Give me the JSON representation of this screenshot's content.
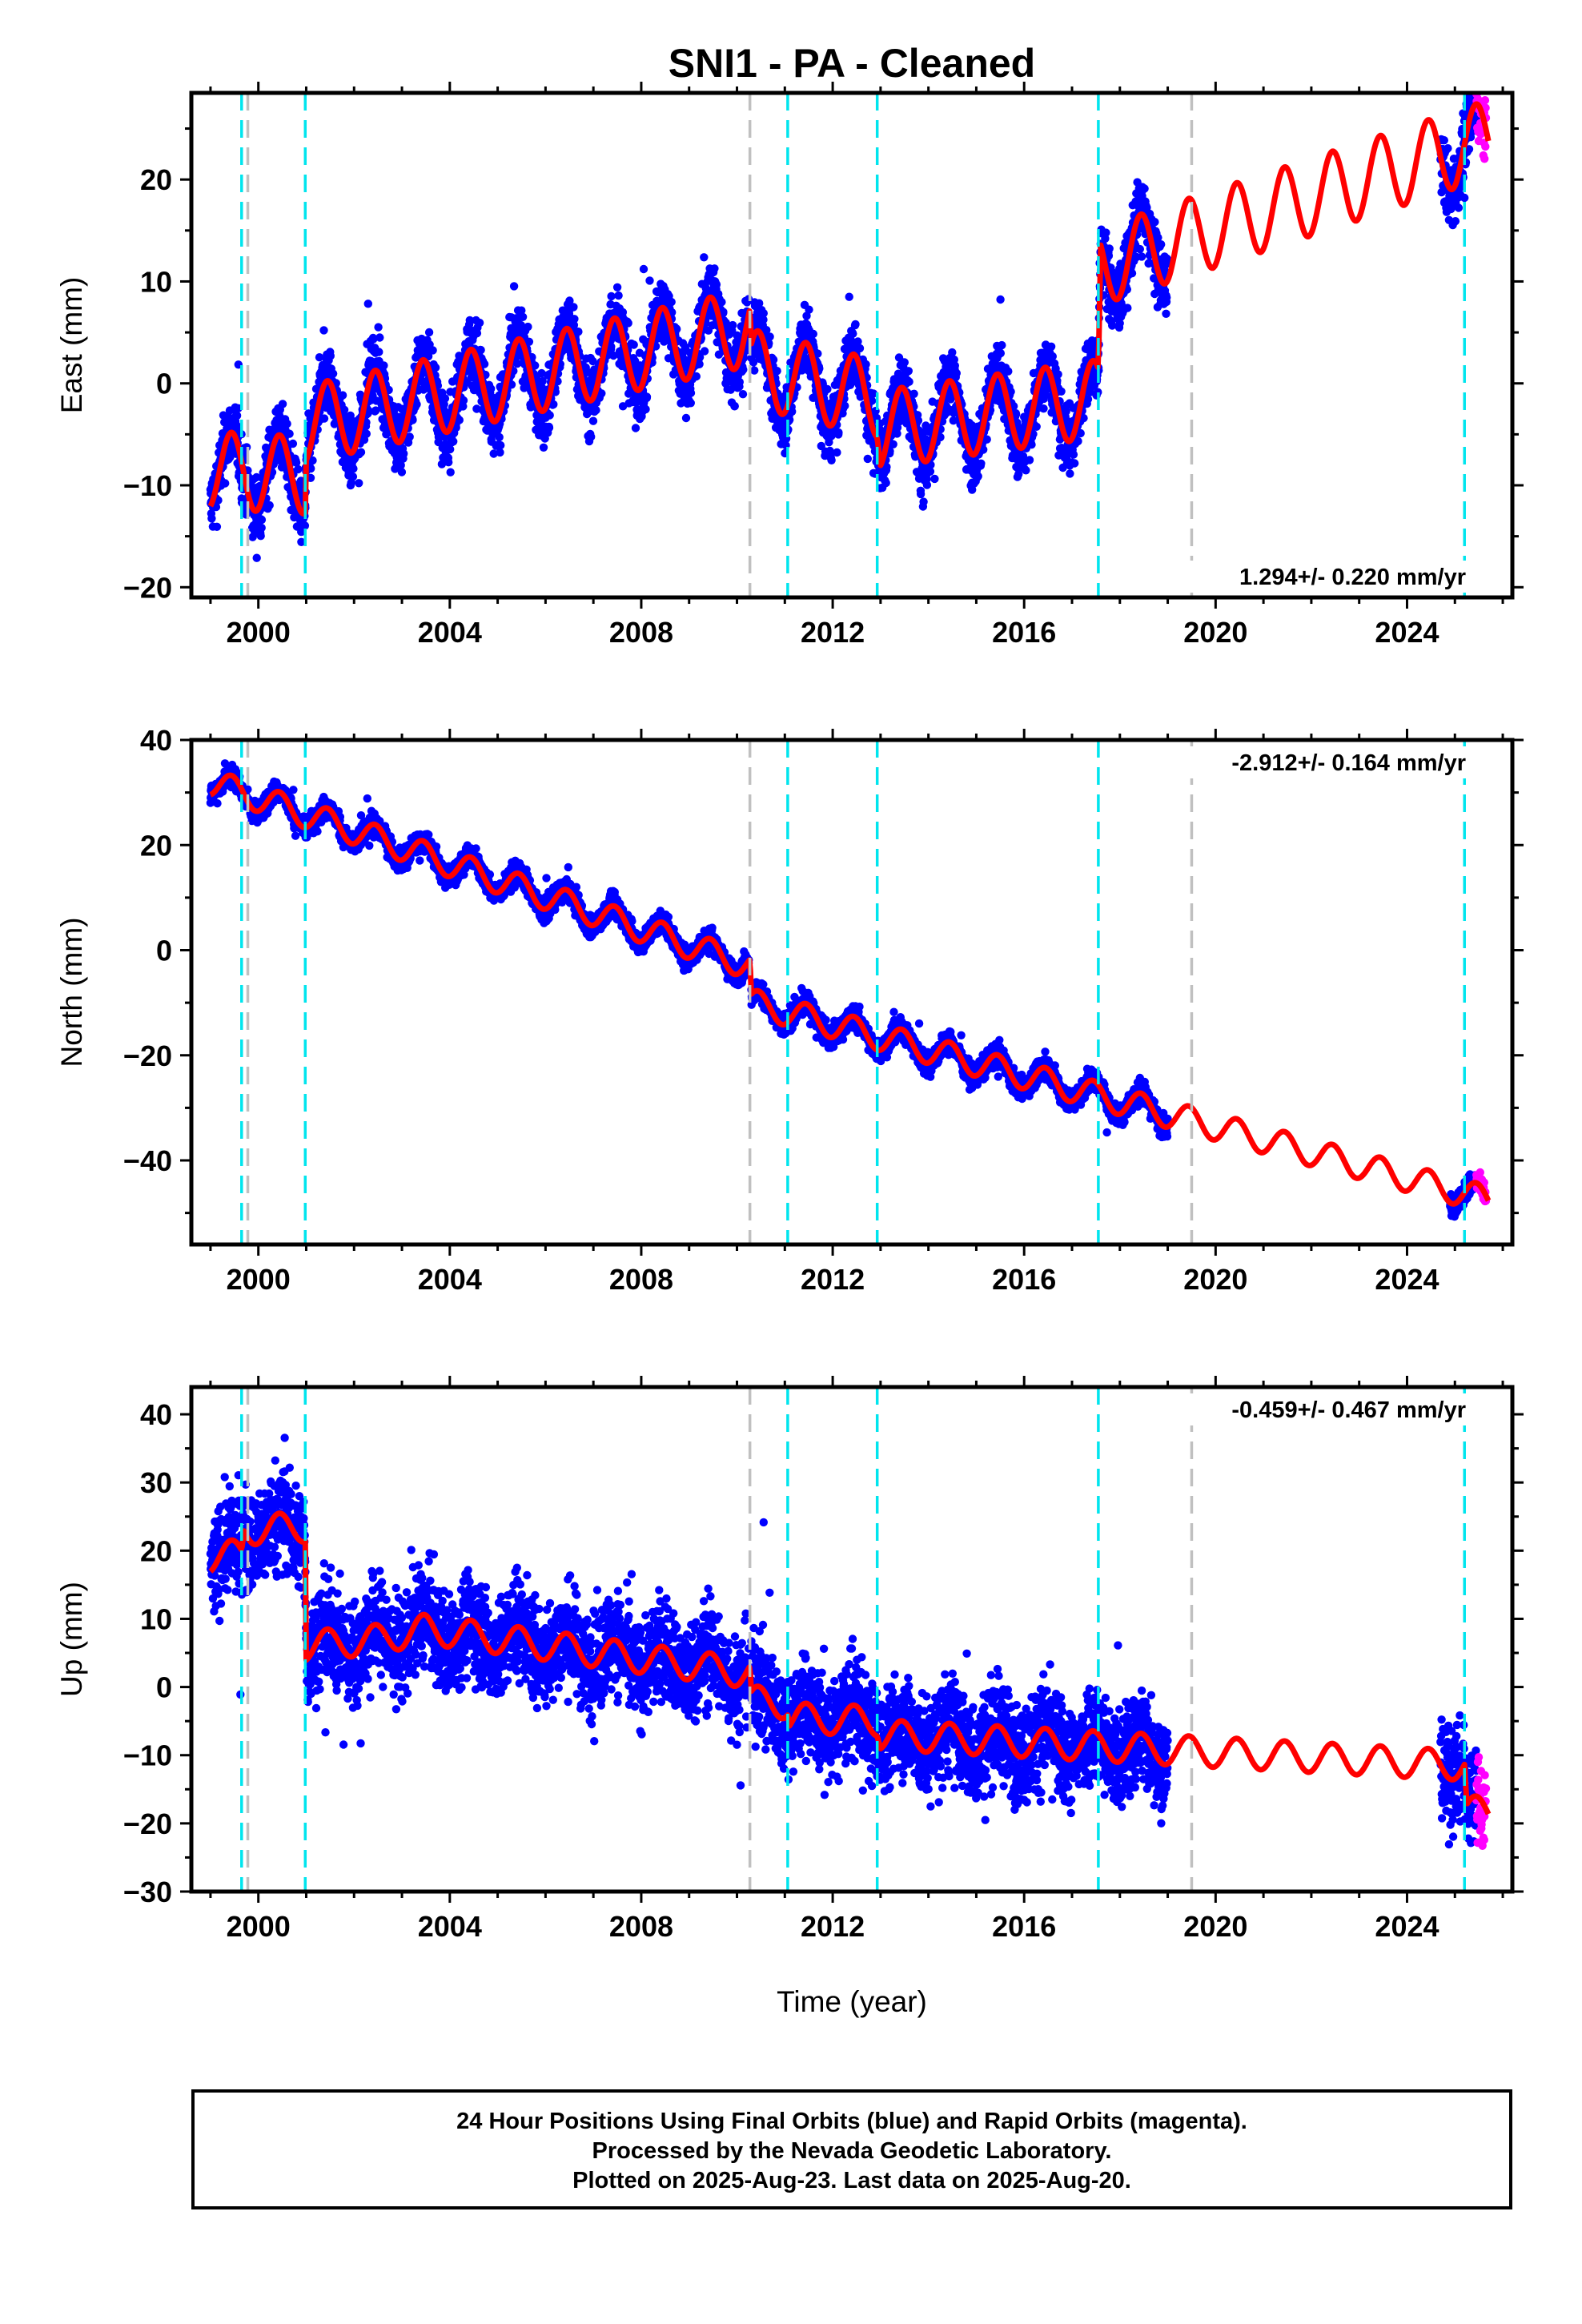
{
  "title": "SNI1  - PA - Cleaned",
  "x_axis_label": "Time (year)",
  "footer": {
    "line1": "24 Hour Positions Using Final Orbits (blue) and Rapid Orbits (magenta).",
    "line2": "Processed by the Nevada Geodetic Laboratory.",
    "line3": "Plotted on 2025-Aug-23. Last data on 2025-Aug-20."
  },
  "colors": {
    "final_orbits": "#0000ff",
    "rapid_orbits": "#ff00ff",
    "model": "#ff0000",
    "equipment_change": "#00e5ee",
    "other_event": "#c0c0c0"
  },
  "chart_data": [
    {
      "type": "scatter",
      "panel": "east",
      "ylabel": "East (mm)",
      "xlim": [
        1998.6,
        2026.2
      ],
      "ylim": [
        -21,
        28.5
      ],
      "xticks": [
        2000,
        2004,
        2008,
        2012,
        2016,
        2020,
        2024
      ],
      "yticks": [
        -20,
        -10,
        0,
        10,
        20
      ],
      "rate_label": "1.294+/- 0.220 mm/yr",
      "rate_position": "bottom-right",
      "equipment_change_lines": [
        1999.65,
        2000.98,
        2011.06,
        2012.93,
        2017.55,
        2025.2
      ],
      "other_event_lines": [
        1999.78,
        2010.27,
        2019.5
      ],
      "series": [
        {
          "kind": "final",
          "segments": [
            [
              1999.0,
              2010.25
            ],
            [
              2010.3,
              2017.6
            ],
            [
              2017.6,
              2019.0
            ],
            [
              2024.7,
              2025.45
            ]
          ]
        },
        {
          "kind": "rapid",
          "segments": [
            [
              2025.45,
              2025.65
            ]
          ]
        }
      ],
      "model": {
        "anchors": [
          {
            "x": 1999.0,
            "y": -8.5
          },
          {
            "x": 2000.98,
            "y": -9.0
          },
          {
            "x": 2001.0,
            "y": -4.0
          },
          {
            "x": 2010.27,
            "y": 5.5
          },
          {
            "x": 2010.3,
            "y": 1.5
          },
          {
            "x": 2012.93,
            "y": -1.5
          },
          {
            "x": 2013.0,
            "y": -4.5
          },
          {
            "x": 2017.55,
            "y": -1.5
          },
          {
            "x": 2017.6,
            "y": 11.5
          },
          {
            "x": 2025.7,
            "y": 24.0
          }
        ],
        "annual_amplitude_mm": 3.8
      }
    },
    {
      "type": "scatter",
      "panel": "north",
      "ylabel": "North (mm)",
      "xlim": [
        1998.6,
        2026.2
      ],
      "ylim": [
        -56,
        40
      ],
      "xticks": [
        2000,
        2004,
        2008,
        2012,
        2016,
        2020,
        2024
      ],
      "yticks": [
        -40,
        -20,
        0,
        20,
        40
      ],
      "rate_label": "-2.912+/- 0.164 mm/yr",
      "rate_position": "top-right",
      "equipment_change_lines": [
        1999.65,
        2000.98,
        2011.06,
        2012.93,
        2017.55,
        2025.2
      ],
      "other_event_lines": [
        1999.78,
        2010.27,
        2019.5
      ],
      "series": [
        {
          "kind": "final",
          "segments": [
            [
              1999.0,
              2010.25
            ],
            [
              2010.3,
              2019.0
            ],
            [
              2024.9,
              2025.45
            ]
          ]
        },
        {
          "kind": "rapid",
          "segments": [
            [
              2025.45,
              2025.65
            ]
          ]
        }
      ],
      "model": {
        "anchors": [
          {
            "x": 1999.0,
            "y": 32.0
          },
          {
            "x": 2010.27,
            "y": -3.0
          },
          {
            "x": 2010.3,
            "y": -10.0
          },
          {
            "x": 2025.7,
            "y": -47.5
          }
        ],
        "annual_amplitude_mm": 2.6
      }
    },
    {
      "type": "scatter",
      "panel": "up",
      "ylabel": "Up (mm)",
      "xlim": [
        1998.6,
        2026.2
      ],
      "ylim": [
        -30,
        44
      ],
      "xticks": [
        2000,
        2004,
        2008,
        2012,
        2016,
        2020,
        2024
      ],
      "yticks": [
        -30,
        -20,
        -10,
        0,
        10,
        20,
        30,
        40
      ],
      "rate_label": "-0.459+/- 0.467 mm/yr",
      "rate_position": "top-right",
      "equipment_change_lines": [
        1999.65,
        2000.98,
        2011.06,
        2012.93,
        2017.55,
        2025.2
      ],
      "other_event_lines": [
        1999.78,
        2010.27,
        2019.5
      ],
      "series": [
        {
          "kind": "final",
          "segments": [
            [
              1999.0,
              2010.25
            ],
            [
              2010.3,
              2019.0
            ],
            [
              2024.7,
              2025.45
            ]
          ]
        },
        {
          "kind": "rapid",
          "segments": [
            [
              2025.45,
              2025.65
            ]
          ]
        }
      ],
      "model": {
        "anchors": [
          {
            "x": 1999.0,
            "y": 19.0
          },
          {
            "x": 1999.65,
            "y": 19.5
          },
          {
            "x": 1999.7,
            "y": 23.0
          },
          {
            "x": 2000.98,
            "y": 23.5
          },
          {
            "x": 2001.0,
            "y": 6.0
          },
          {
            "x": 2002.5,
            "y": 7.0
          },
          {
            "x": 2003.5,
            "y": 8.5
          },
          {
            "x": 2010.27,
            "y": 2.0
          },
          {
            "x": 2010.3,
            "y": -2.0
          },
          {
            "x": 2011.06,
            "y": -2.5
          },
          {
            "x": 2011.1,
            "y": -4.5
          },
          {
            "x": 2012.93,
            "y": -5.0
          },
          {
            "x": 2013.0,
            "y": -7.0
          },
          {
            "x": 2025.2,
            "y": -11.5
          },
          {
            "x": 2025.25,
            "y": -18.0
          },
          {
            "x": 2025.7,
            "y": -18.5
          }
        ],
        "annual_amplitude_mm": 2.2
      }
    }
  ]
}
